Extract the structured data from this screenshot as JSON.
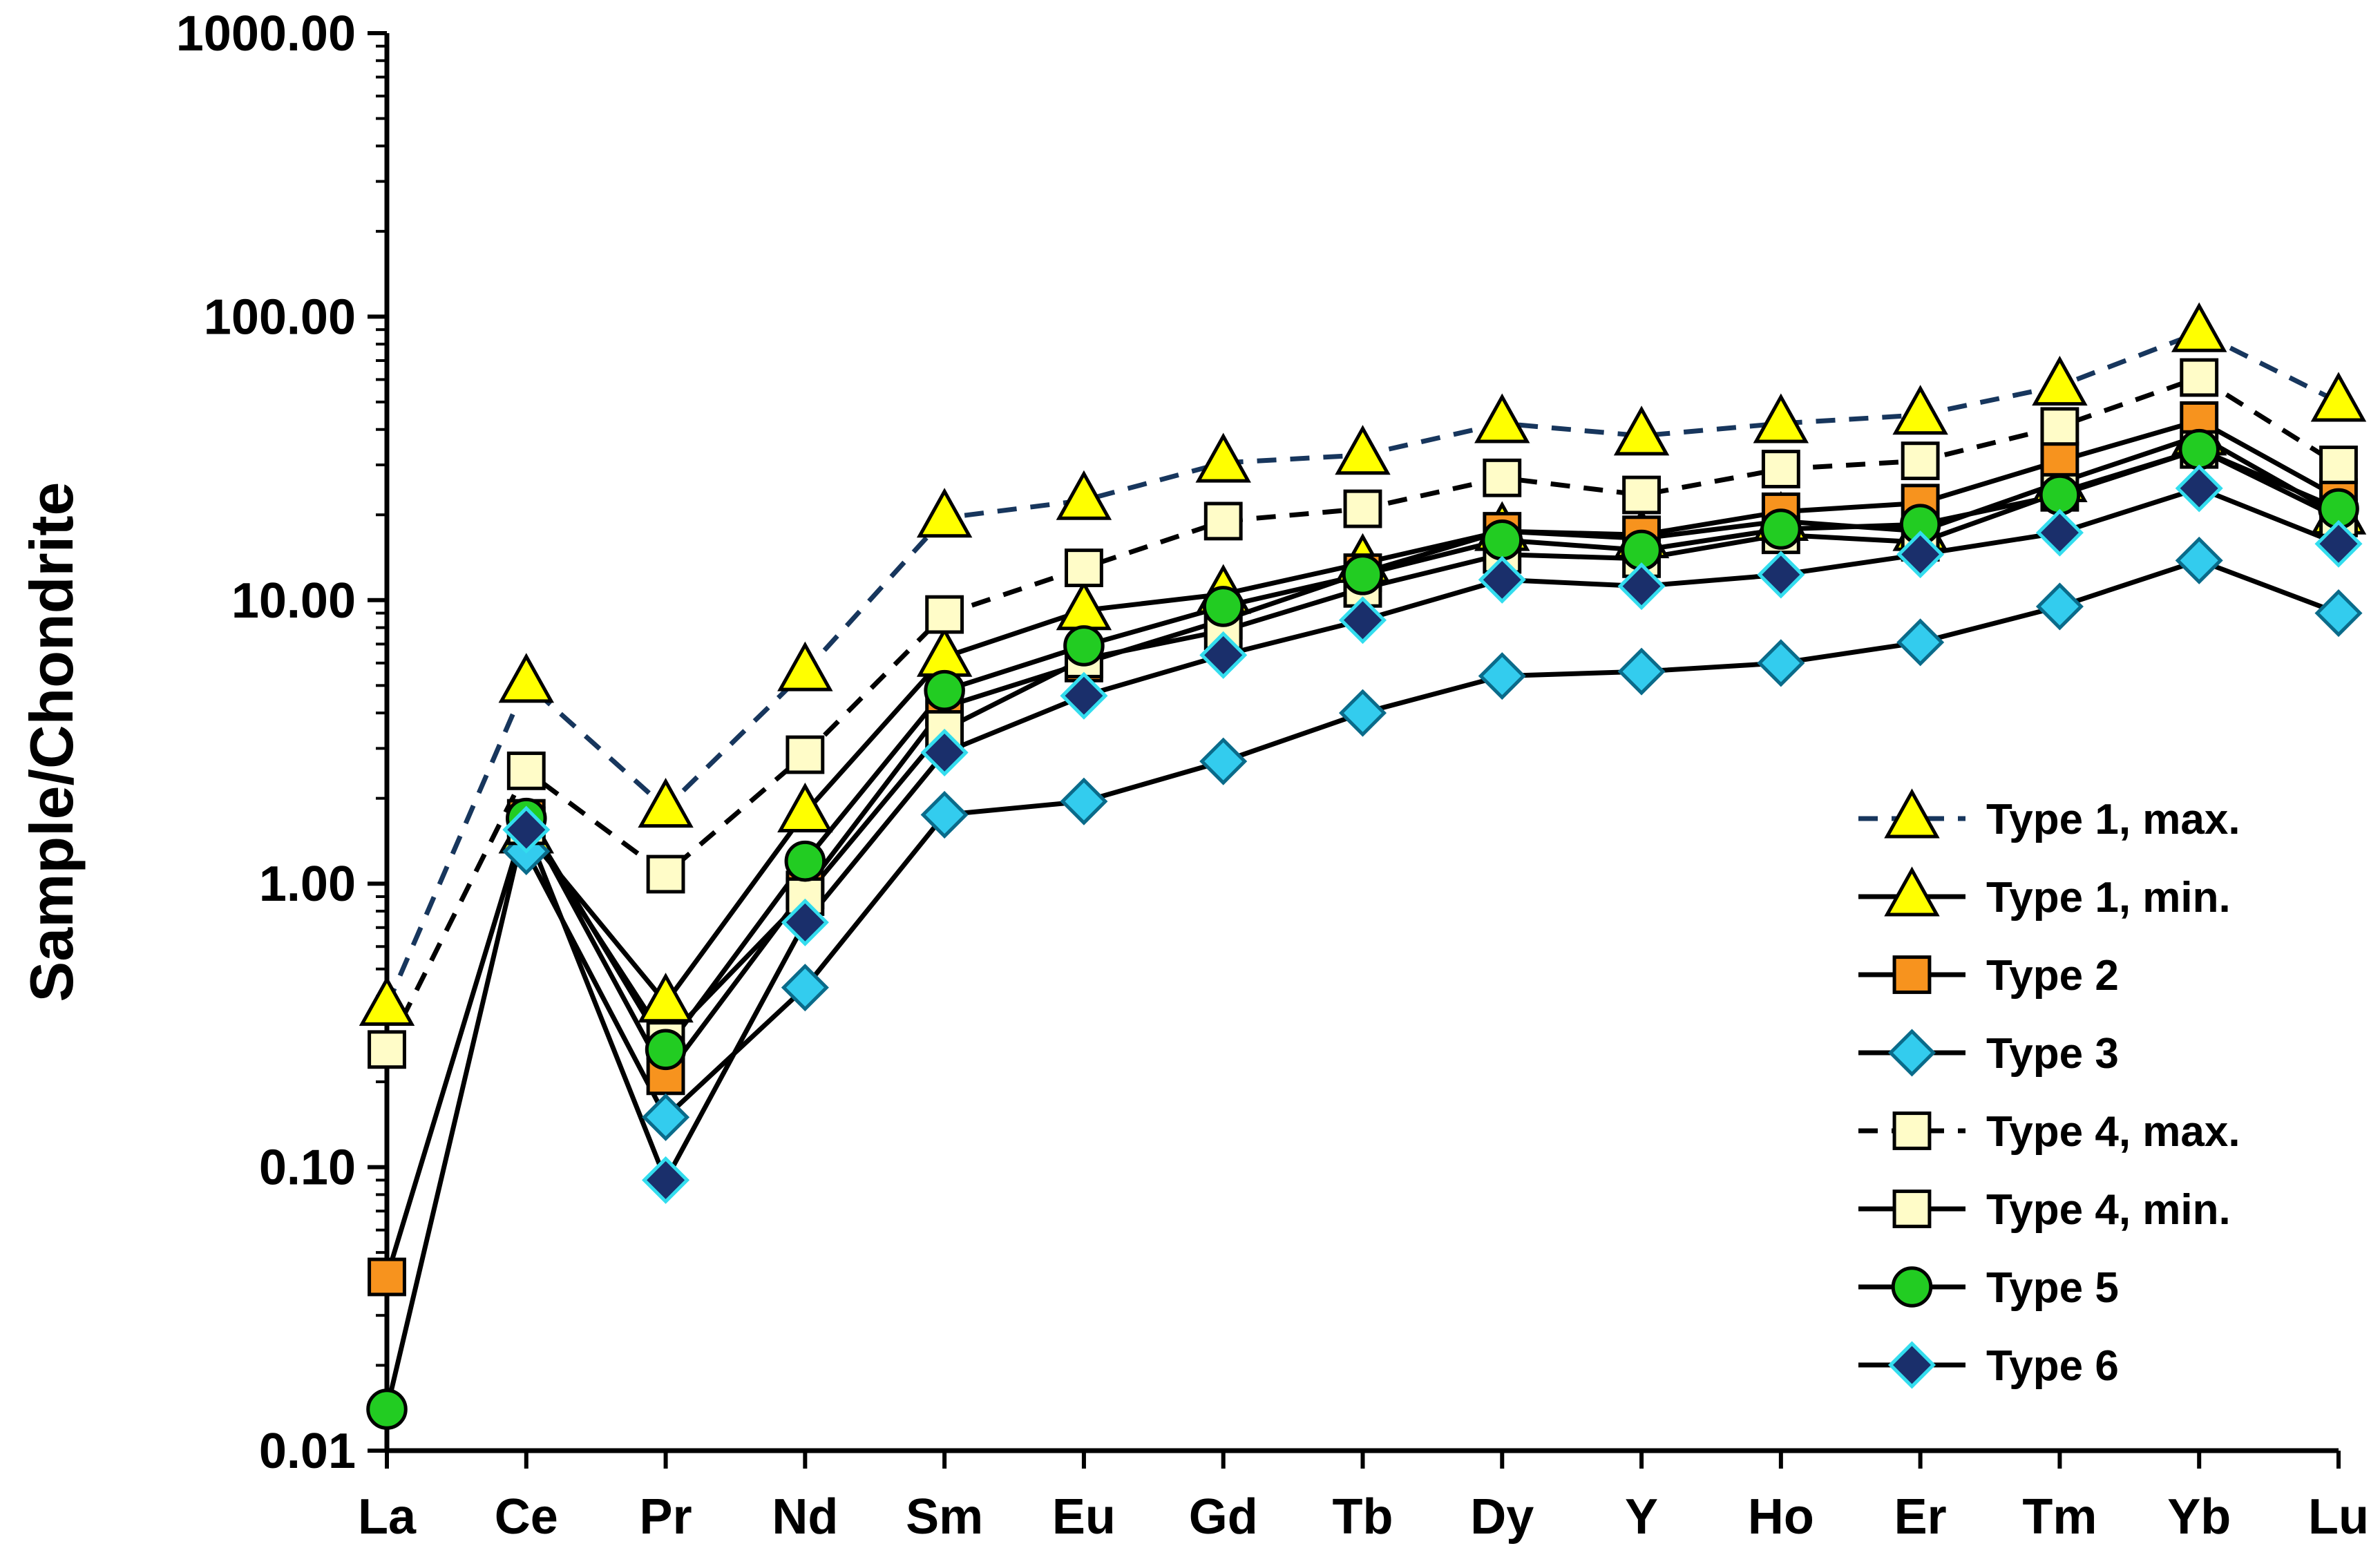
{
  "chart_data": {
    "type": "line",
    "title": "",
    "xlabel": "",
    "ylabel": "Sample/Chondrite",
    "yscale": "log",
    "ylim": [
      0.01,
      1000
    ],
    "yticks": [
      0.01,
      0.1,
      1,
      10,
      100,
      1000
    ],
    "ytick_labels": [
      "0.01",
      "0.10",
      "1.00",
      "10.00",
      "100.00",
      "1000.00"
    ],
    "categories": [
      "La",
      "Ce",
      "Pr",
      "Nd",
      "Sm",
      "Eu",
      "Gd",
      "Tb",
      "Dy",
      "Y",
      "Ho",
      "Er",
      "Tm",
      "Yb",
      "Lu"
    ],
    "legend_position": "lower-right",
    "series": [
      {
        "name": "Type 1, max.",
        "marker": "triangle",
        "fill": "#ffff00",
        "edge": "#000000",
        "line_color": "#17365d",
        "dashed": true,
        "values": [
          0.37,
          5.1,
          1.85,
          5.6,
          19.5,
          22.5,
          30.5,
          32.5,
          42.0,
          38.0,
          42.0,
          45.0,
          57.0,
          88.0,
          50.0
        ]
      },
      {
        "name": "Type 1, min.",
        "marker": "triangle",
        "fill": "#ffff00",
        "edge": "#000000",
        "line_color": "#000000",
        "dashed": false,
        "values": [
          null,
          1.5,
          0.38,
          1.78,
          6.3,
          9.2,
          10.5,
          13.5,
          17.5,
          16.5,
          19.0,
          17.5,
          26.0,
          38.0,
          20.0
        ]
      },
      {
        "name": "Type 2",
        "marker": "square",
        "fill": "#f7931e",
        "edge": "#000000",
        "line_color": "#000000",
        "dashed": false,
        "values": [
          0.041,
          1.7,
          0.21,
          0.95,
          4.2,
          6.0,
          8.5,
          12.5,
          17.5,
          17.0,
          20.5,
          22.0,
          31.0,
          43.0,
          23.0
        ]
      },
      {
        "name": "Type 3",
        "marker": "diamond",
        "fill": "#33ccee",
        "edge": "#0a6b8a",
        "line_color": "#000000",
        "dashed": false,
        "values": [
          null,
          1.3,
          0.15,
          0.43,
          1.75,
          1.95,
          2.7,
          4.0,
          5.4,
          5.6,
          6.0,
          7.1,
          9.5,
          13.8,
          9.0
        ]
      },
      {
        "name": "Type 4, max.",
        "marker": "square",
        "fill": "#fffcc8",
        "edge": "#000000",
        "line_color": "#000000",
        "dashed": true,
        "values": [
          0.26,
          2.5,
          1.08,
          2.85,
          8.9,
          13.0,
          19.0,
          21.0,
          27.0,
          23.5,
          29.0,
          31.0,
          41.0,
          61.0,
          30.0
        ]
      },
      {
        "name": "Type 4, min.",
        "marker": "square",
        "fill": "#fffcc8",
        "edge": "#000000",
        "line_color": "#000000",
        "dashed": false,
        "values": [
          null,
          1.6,
          0.28,
          0.9,
          3.5,
          6.2,
          7.8,
          11.0,
          14.5,
          14.0,
          17.0,
          16.0,
          24.0,
          34.0,
          19.5
        ]
      },
      {
        "name": "Type 5",
        "marker": "circle",
        "fill": "#22cc22",
        "edge": "#000000",
        "line_color": "#000000",
        "dashed": false,
        "values": [
          0.014,
          1.7,
          0.26,
          1.2,
          4.8,
          6.9,
          9.5,
          12.3,
          16.3,
          15.0,
          17.8,
          18.5,
          23.5,
          34.0,
          21.0
        ]
      },
      {
        "name": "Type 6",
        "marker": "diamond",
        "fill": "#1a2f6b",
        "edge": "#33ddee",
        "line_color": "#000000",
        "dashed": false,
        "values": [
          null,
          1.55,
          0.09,
          0.73,
          2.9,
          4.6,
          6.4,
          8.5,
          11.8,
          11.2,
          12.3,
          14.5,
          17.3,
          24.8,
          15.8
        ]
      }
    ]
  }
}
